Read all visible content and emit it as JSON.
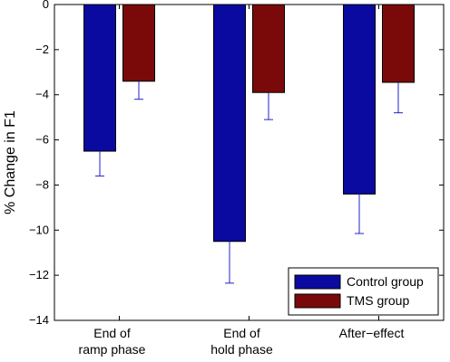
{
  "chart_data": {
    "type": "bar",
    "categories": [
      [
        "End of",
        "ramp phase"
      ],
      [
        "End of",
        "hold phase"
      ],
      [
        "After−effect"
      ]
    ],
    "series": [
      {
        "name": "Control group",
        "color": "#0a0aa0",
        "values": [
          -6.5,
          -10.5,
          -8.4
        ],
        "error": [
          1.1,
          1.85,
          1.75
        ]
      },
      {
        "name": "TMS group",
        "color": "#7a0a0a",
        "values": [
          -3.4,
          -3.9,
          -3.45
        ],
        "error": [
          0.8,
          1.2,
          1.35
        ]
      }
    ],
    "ylabel": "% Change in F1",
    "ylim": [
      -14,
      0
    ],
    "yticks": [
      0,
      -2,
      -4,
      -6,
      -8,
      -10,
      -12,
      -14
    ],
    "yticklabels": [
      "0",
      "−2",
      "−4",
      "−6",
      "−8",
      "−10",
      "−12",
      "−14"
    ],
    "legend_position": "bottom-right",
    "error_bar_color": "#2020d0"
  }
}
